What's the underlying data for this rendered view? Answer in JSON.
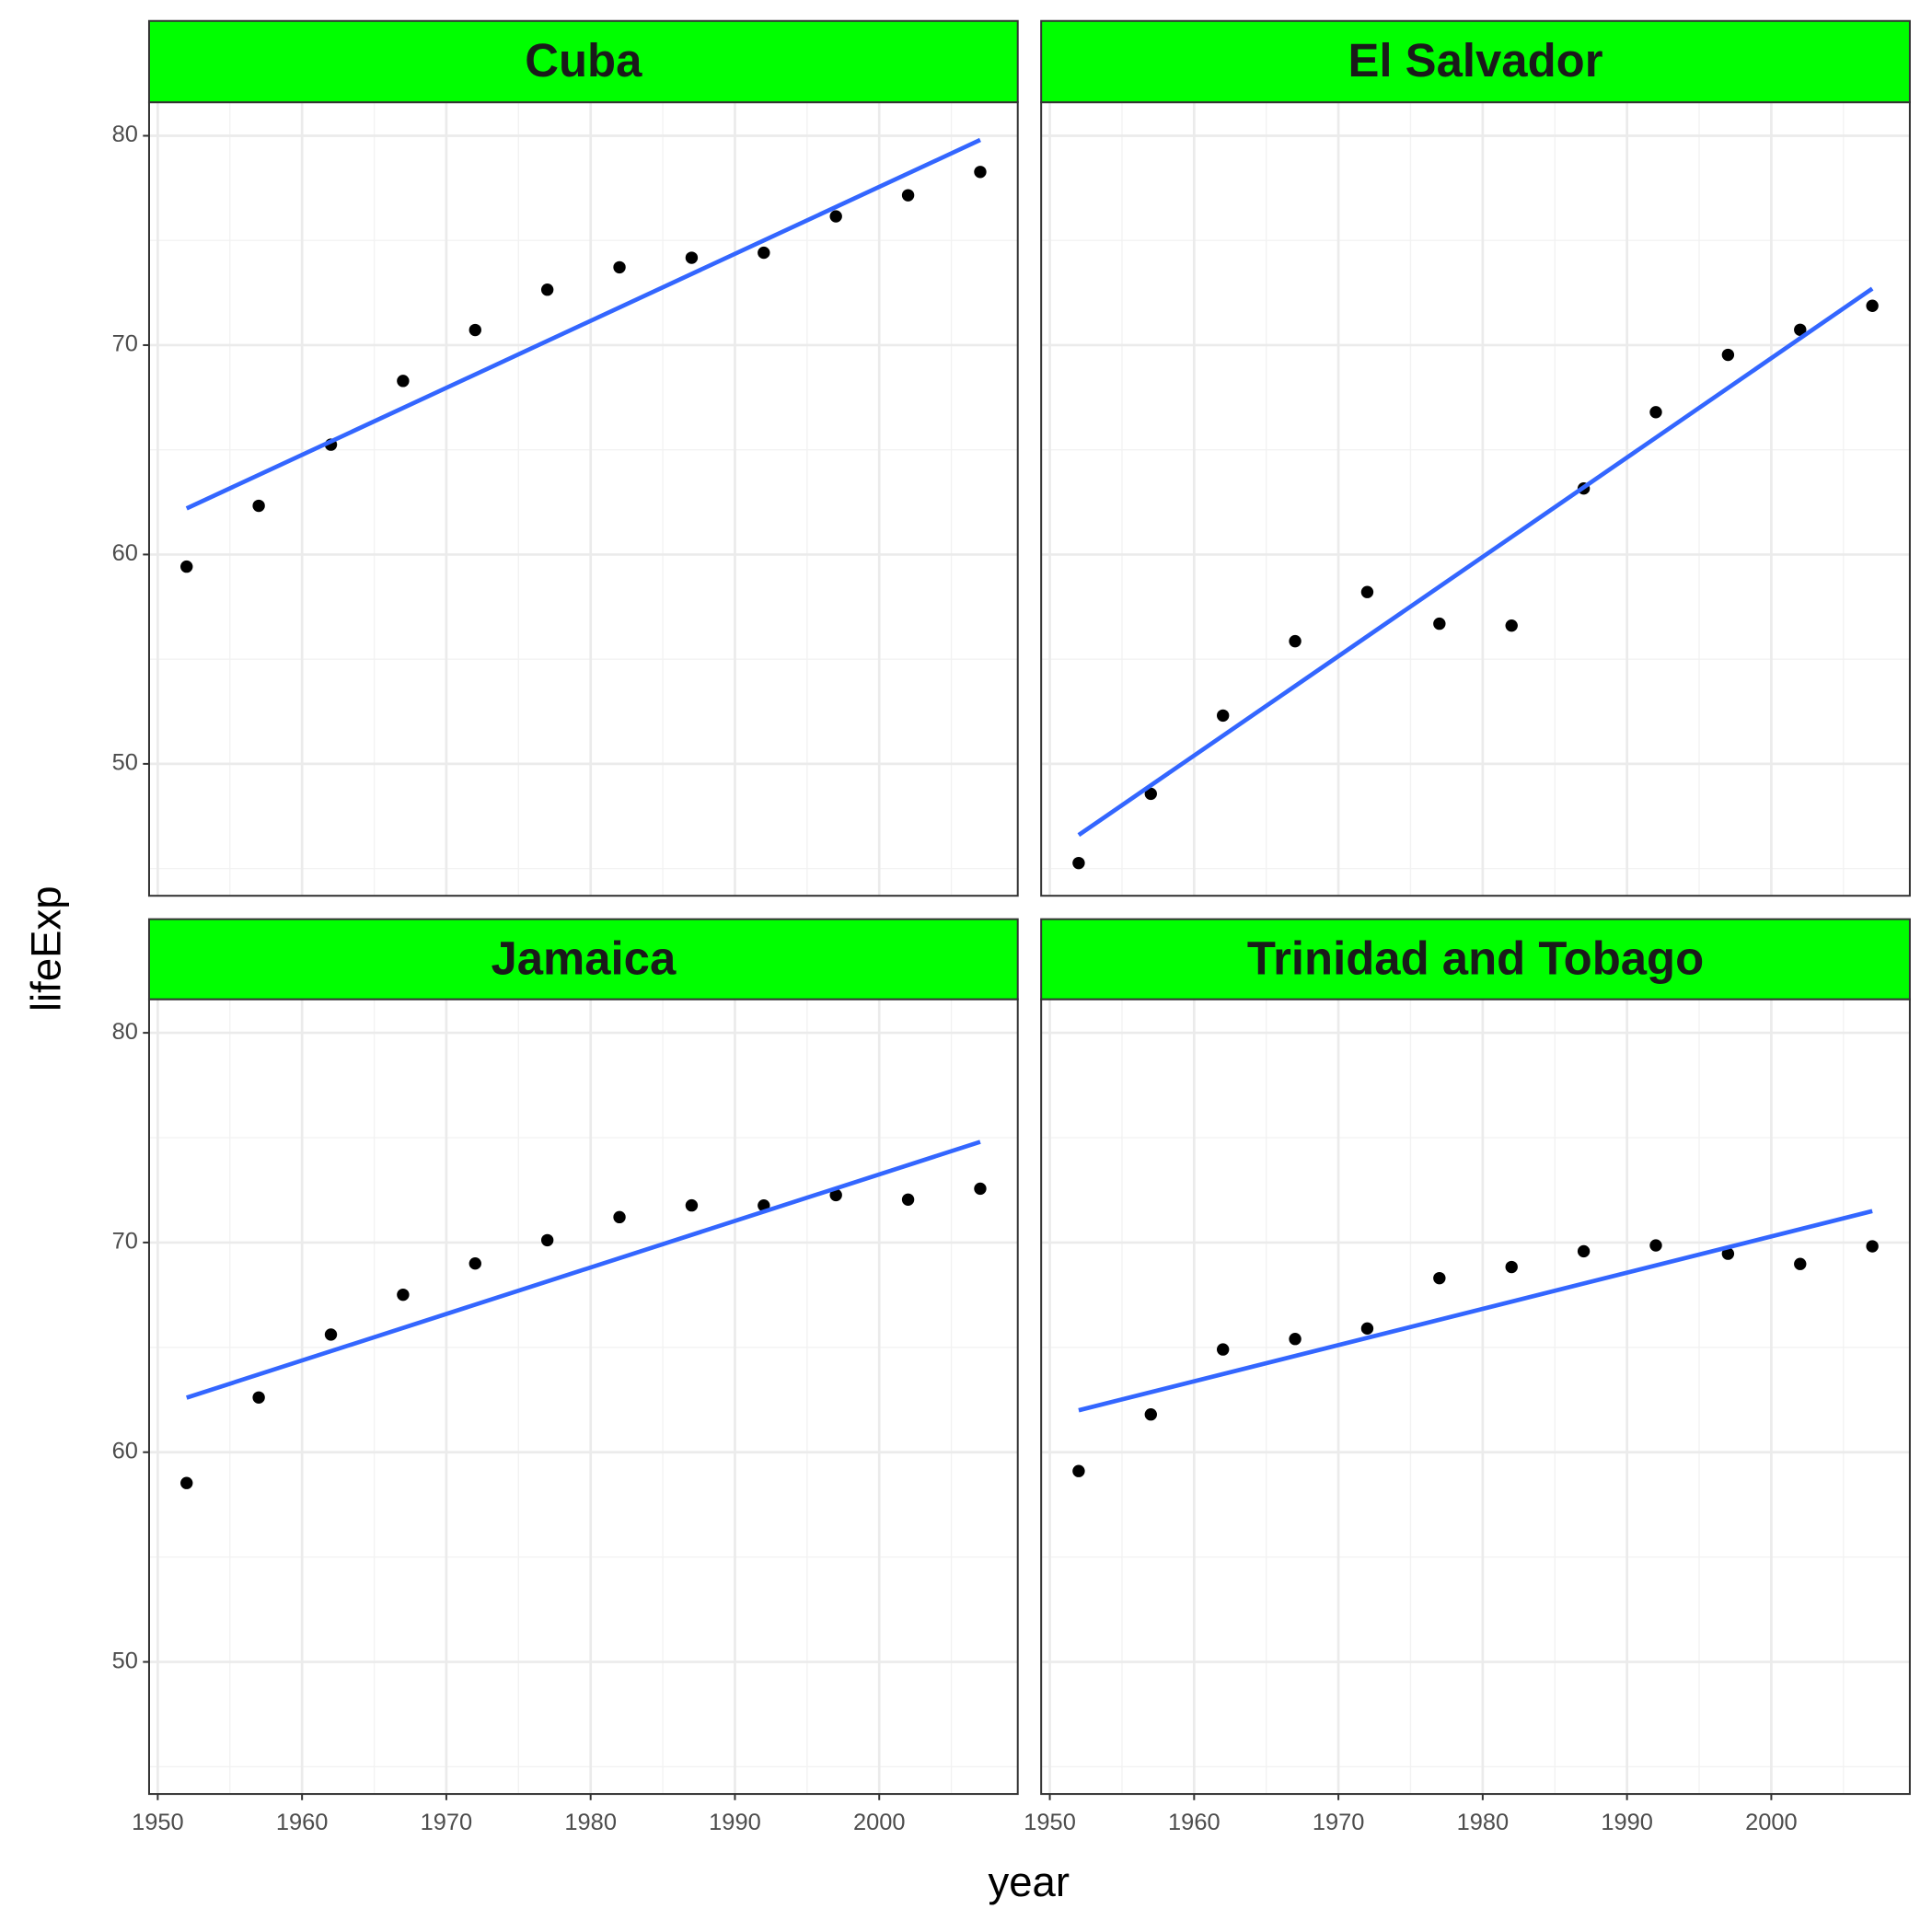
{
  "xlabel": "year",
  "ylabel": "lifeExp",
  "chart_data": [
    {
      "type": "scatter",
      "title": "Cuba",
      "strip_color": "#00ff00",
      "color": "#000000",
      "x": [
        1952,
        1957,
        1962,
        1967,
        1972,
        1977,
        1982,
        1987,
        1992,
        1997,
        2002,
        2007
      ],
      "values": [
        59.421,
        62.325,
        65.246,
        68.29,
        70.723,
        72.649,
        73.717,
        74.174,
        74.414,
        76.151,
        77.158,
        78.273
      ],
      "fit": {
        "color": "#3366ff",
        "x": [
          1952,
          2007
        ],
        "values": [
          62.2,
          79.8
        ]
      },
      "xlim": [
        1949.4,
        2009.6
      ],
      "ylim": [
        43.7,
        81.6
      ],
      "xticks": [
        1950,
        1960,
        1970,
        1980,
        1990,
        2000
      ],
      "yticks": [
        50,
        60,
        70,
        80
      ],
      "xminor": [
        1955,
        1965,
        1975,
        1985,
        1995,
        2005
      ],
      "yminor": [
        45,
        55,
        65,
        75
      ],
      "grid": true
    },
    {
      "type": "scatter",
      "title": "El Salvador",
      "strip_color": "#00ff00",
      "color": "#000000",
      "x": [
        1952,
        1957,
        1962,
        1967,
        1972,
        1977,
        1982,
        1987,
        1992,
        1997,
        2002,
        2007
      ],
      "values": [
        45.262,
        48.57,
        52.307,
        55.859,
        58.207,
        56.696,
        56.604,
        63.154,
        66.798,
        69.535,
        70.734,
        71.878
      ],
      "fit": {
        "color": "#3366ff",
        "x": [
          1952,
          2007
        ],
        "values": [
          46.6,
          72.7
        ]
      },
      "xlim": [
        1949.4,
        2009.6
      ],
      "ylim": [
        43.7,
        81.6
      ],
      "xticks": [
        1950,
        1960,
        1970,
        1980,
        1990,
        2000
      ],
      "yticks": [
        50,
        60,
        70,
        80
      ],
      "xminor": [
        1955,
        1965,
        1975,
        1985,
        1995,
        2005
      ],
      "yminor": [
        45,
        55,
        65,
        75
      ],
      "grid": true
    },
    {
      "type": "scatter",
      "title": "Jamaica",
      "strip_color": "#00ff00",
      "color": "#000000",
      "x": [
        1952,
        1957,
        1962,
        1967,
        1972,
        1977,
        1982,
        1987,
        1992,
        1997,
        2002,
        2007
      ],
      "values": [
        58.53,
        62.61,
        65.61,
        67.51,
        69.0,
        70.11,
        71.21,
        71.77,
        71.766,
        72.262,
        72.047,
        72.567
      ],
      "fit": {
        "color": "#3366ff",
        "x": [
          1952,
          2007
        ],
        "values": [
          62.6,
          74.8
        ]
      },
      "xlim": [
        1949.4,
        2009.6
      ],
      "ylim": [
        43.7,
        81.6
      ],
      "xticks": [
        1950,
        1960,
        1970,
        1980,
        1990,
        2000
      ],
      "yticks": [
        50,
        60,
        70,
        80
      ],
      "xminor": [
        1955,
        1965,
        1975,
        1985,
        1995,
        2005
      ],
      "yminor": [
        45,
        55,
        65,
        75
      ],
      "grid": true
    },
    {
      "type": "scatter",
      "title": "Trinidad and Tobago",
      "strip_color": "#00ff00",
      "color": "#000000",
      "x": [
        1952,
        1957,
        1962,
        1967,
        1972,
        1977,
        1982,
        1987,
        1992,
        1997,
        2002,
        2007
      ],
      "values": [
        59.1,
        61.8,
        64.9,
        65.4,
        65.9,
        68.3,
        68.832,
        69.582,
        69.862,
        69.465,
        68.976,
        69.819
      ],
      "fit": {
        "color": "#3366ff",
        "x": [
          1952,
          2007
        ],
        "values": [
          62.0,
          71.5
        ]
      },
      "xlim": [
        1949.4,
        2009.6
      ],
      "ylim": [
        43.7,
        81.6
      ],
      "xticks": [
        1950,
        1960,
        1970,
        1980,
        1990,
        2000
      ],
      "yticks": [
        50,
        60,
        70,
        80
      ],
      "xminor": [
        1955,
        1965,
        1975,
        1985,
        1995,
        2005
      ],
      "yminor": [
        45,
        55,
        65,
        75
      ],
      "grid": true
    }
  ]
}
